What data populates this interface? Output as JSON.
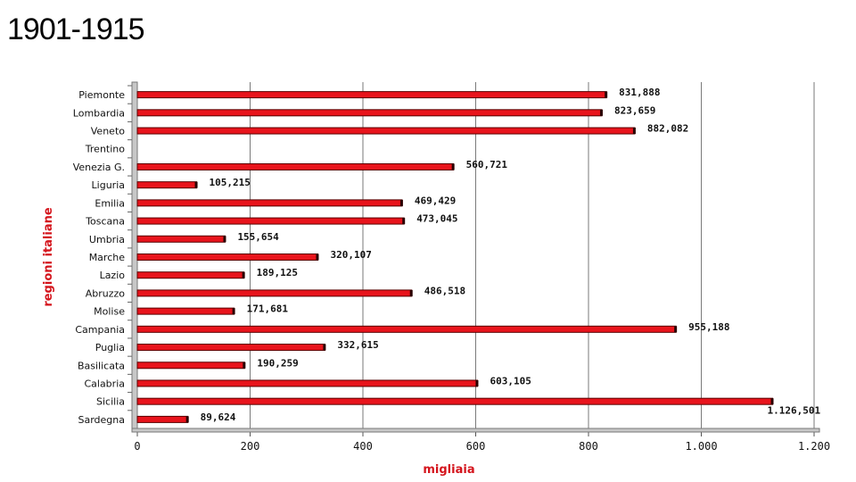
{
  "slide": {
    "title": "1901-1915"
  },
  "chart_data": {
    "type": "bar",
    "orientation": "horizontal",
    "categories": [
      "Piemonte",
      "Lombardia",
      "Veneto",
      "Trentino",
      "Venezia G.",
      "Liguria",
      "Emilia",
      "Toscana",
      "Umbria",
      "Marche",
      "Lazio",
      "Abruzzo",
      "Molise",
      "Campania",
      "Puglia",
      "Basilicata",
      "Calabria",
      "Sicilia",
      "Sardegna"
    ],
    "values": [
      831.888,
      823.659,
      882.082,
      null,
      560.721,
      105.215,
      469.429,
      473.045,
      155.654,
      320.107,
      189.125,
      486.518,
      171.681,
      955.188,
      332.615,
      190.259,
      603.105,
      1126.501,
      89.624
    ],
    "data_labels": [
      "831,888",
      "823,659",
      "882,082",
      "",
      "560,721",
      "105,215",
      "469,429",
      "473,045",
      "155,654",
      "320,107",
      "189,125",
      "486,518",
      "171,681",
      "955,188",
      "332,615",
      "190,259",
      "603,105",
      "1.126,501",
      "89,624"
    ],
    "xlabel": "migliaia",
    "ylabel": "regioni italiane",
    "xlim": [
      0,
      1200
    ],
    "xticks": [
      0,
      200,
      400,
      600,
      800,
      1000,
      1200
    ],
    "xtick_labels": [
      "0",
      "200",
      "400",
      "600",
      "800",
      "1.000",
      "1.200"
    ],
    "grid": true,
    "colors": {
      "bar": "#e8141c",
      "bar_edge": "#5a0000",
      "axis_label": "#d4141c"
    }
  }
}
